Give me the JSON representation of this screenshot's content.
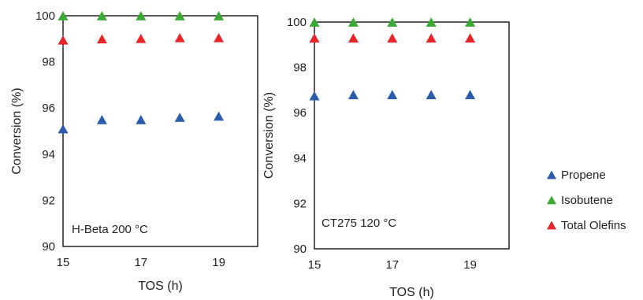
{
  "chart_data": [
    {
      "type": "scatter",
      "xlabel": "TOS (h)",
      "ylabel": "Conversion (%)",
      "annotation": "H-Beta 200 °C",
      "xlim": [
        15,
        20
      ],
      "ylim": [
        90,
        100
      ],
      "xticks": [
        15,
        17,
        19
      ],
      "yticks": [
        90,
        92,
        94,
        96,
        98,
        100
      ],
      "series": [
        {
          "name": "Propene",
          "color": "#2a5caa",
          "x": [
            15,
            16,
            17,
            18,
            19
          ],
          "y": [
            95.1,
            95.5,
            95.5,
            95.6,
            95.65
          ]
        },
        {
          "name": "Isobutene",
          "color": "#3aaa35",
          "x": [
            15,
            16,
            17,
            18,
            19
          ],
          "y": [
            100.0,
            100.0,
            100.0,
            100.0,
            100.0
          ]
        },
        {
          "name": "Total Olefins",
          "color": "#e8262a",
          "x": [
            15,
            16,
            17,
            18,
            19
          ],
          "y": [
            98.95,
            99.0,
            99.02,
            99.05,
            99.05
          ]
        }
      ]
    },
    {
      "type": "scatter",
      "xlabel": "TOS (h)",
      "ylabel": "Conversion (%)",
      "annotation": "CT275 120 °C",
      "xlim": [
        15,
        20
      ],
      "ylim": [
        90,
        100
      ],
      "xticks": [
        15,
        17,
        19
      ],
      "yticks": [
        90,
        92,
        94,
        96,
        98,
        100
      ],
      "series": [
        {
          "name": "Propene",
          "color": "#2a5caa",
          "x": [
            15,
            16,
            17,
            18,
            19
          ],
          "y": [
            96.75,
            96.8,
            96.8,
            96.8,
            96.8
          ]
        },
        {
          "name": "Isobutene",
          "color": "#3aaa35",
          "x": [
            15,
            16,
            17,
            18,
            19
          ],
          "y": [
            100.0,
            100.0,
            100.0,
            100.0,
            100.0
          ]
        },
        {
          "name": "Total Olefins",
          "color": "#e8262a",
          "x": [
            15,
            16,
            17,
            18,
            19
          ],
          "y": [
            99.3,
            99.3,
            99.3,
            99.3,
            99.3
          ]
        }
      ]
    }
  ],
  "legend": {
    "placement": "right",
    "items": [
      {
        "label": "Propene",
        "color": "#2a5caa"
      },
      {
        "label": "Isobutene",
        "color": "#3aaa35"
      },
      {
        "label": "Total Olefins",
        "color": "#e8262a"
      }
    ]
  }
}
